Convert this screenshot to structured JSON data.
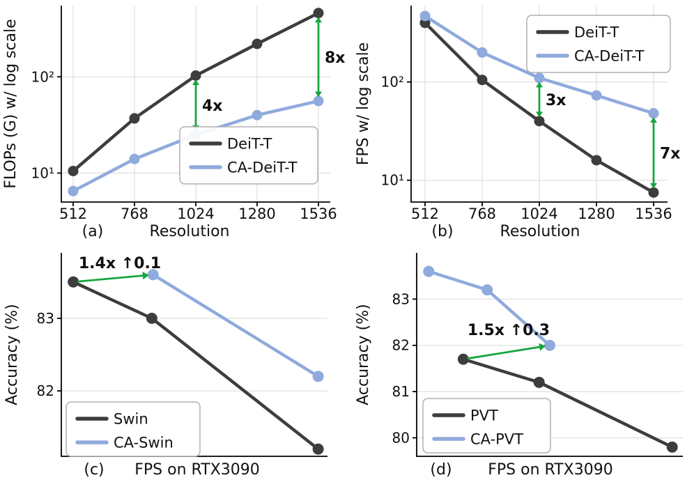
{
  "figure": {
    "background": "#ffffff",
    "colors": {
      "dark": "#3d3d3d",
      "blue": "#8faadc",
      "green": "#16a53e",
      "grid": "#e0e0e0",
      "spine": "#000000",
      "text": "#111111",
      "legend_border": "#b0b0b0"
    }
  },
  "chart_data": [
    {
      "id": "a",
      "type": "line",
      "caption": "(a)",
      "xlabel": "Resolution",
      "ylabel": "FLOPs (G) w/ log scale",
      "x": [
        "512",
        "768",
        "1024",
        "1280",
        "1536"
      ],
      "yscale": "log",
      "ylim": [
        5,
        550
      ],
      "yticks": [
        10,
        100
      ],
      "ytick_labels": [
        "10¹",
        "10²"
      ],
      "grid": true,
      "series": [
        {
          "name": "DeiT-T",
          "color": "dark",
          "values": [
            10.5,
            37,
            103,
            220,
            460
          ]
        },
        {
          "name": "CA-DeiT-T",
          "color": "blue",
          "values": [
            6.5,
            14,
            25,
            40,
            56
          ]
        }
      ],
      "legend": [
        "DeiT-T",
        "CA-DeiT-T"
      ],
      "legend_position": "center-right",
      "annotations": [
        {
          "kind": "gap",
          "x_index": 2,
          "label": "4x"
        },
        {
          "kind": "gap",
          "x_index": 4,
          "label": "8x"
        }
      ]
    },
    {
      "id": "b",
      "type": "line",
      "caption": "(b)",
      "xlabel": "Resolution",
      "ylabel": "FPS w/ log scale",
      "x": [
        "512",
        "768",
        "1024",
        "1280",
        "1536"
      ],
      "yscale": "log",
      "ylim": [
        6,
        600
      ],
      "yticks": [
        10,
        100
      ],
      "ytick_labels": [
        "10¹",
        "10²"
      ],
      "grid": true,
      "series": [
        {
          "name": "DeiT-T",
          "color": "dark",
          "values": [
            400,
            105,
            40,
            16,
            7.5
          ]
        },
        {
          "name": "CA-DeiT-T",
          "color": "blue",
          "values": [
            470,
            200,
            110,
            73,
            48
          ]
        }
      ],
      "legend": [
        "DeiT-T",
        "CA-DeiT-T"
      ],
      "legend_position": "top-right",
      "annotations": [
        {
          "kind": "gap",
          "x_index": 2,
          "label": "3x"
        },
        {
          "kind": "gap",
          "x_index": 4,
          "label": "7x"
        }
      ]
    },
    {
      "id": "c",
      "type": "line",
      "caption": "(c)",
      "xlabel": "FPS on RTX3090",
      "ylabel": "Accuracy (%)",
      "yscale": "linear",
      "ylim": [
        81.1,
        83.9
      ],
      "yticks": [
        82,
        83
      ],
      "ytick_labels": [
        "82",
        "83"
      ],
      "grid": true,
      "series": [
        {
          "name": "Swin",
          "color": "dark",
          "x_frac": [
            0.045,
            0.34,
            0.965
          ],
          "values": [
            83.5,
            83.0,
            81.2
          ]
        },
        {
          "name": "CA-Swin",
          "color": "blue",
          "x_frac": [
            0.345,
            0.965
          ],
          "values": [
            83.6,
            82.2
          ]
        }
      ],
      "legend": [
        "Swin",
        "CA-Swin"
      ],
      "legend_position": "bottom-left",
      "annotations": [
        {
          "kind": "speedup",
          "from": [
            0,
            0
          ],
          "to": [
            1,
            0
          ],
          "label": "1.4x ↑0.1"
        }
      ]
    },
    {
      "id": "d",
      "type": "line",
      "caption": "(d)",
      "xlabel": "FPS on RTX3090",
      "ylabel": "Accuracy (%)",
      "yscale": "linear",
      "ylim": [
        79.6,
        84.0
      ],
      "yticks": [
        80,
        81,
        82,
        83
      ],
      "ytick_labels": [
        "80",
        "81",
        "82",
        "83"
      ],
      "grid": true,
      "series": [
        {
          "name": "PVT",
          "color": "dark",
          "x_frac": [
            0.175,
            0.46,
            0.96
          ],
          "values": [
            81.7,
            81.2,
            79.8
          ]
        },
        {
          "name": "CA-PVT",
          "color": "blue",
          "x_frac": [
            0.045,
            0.265,
            0.5
          ],
          "values": [
            83.6,
            83.2,
            82.0
          ]
        }
      ],
      "legend": [
        "PVT",
        "CA-PVT"
      ],
      "legend_position": "bottom-left",
      "annotations": [
        {
          "kind": "speedup",
          "from": [
            0,
            0
          ],
          "to": [
            1,
            2
          ],
          "label": "1.5x ↑0.3"
        }
      ]
    }
  ]
}
